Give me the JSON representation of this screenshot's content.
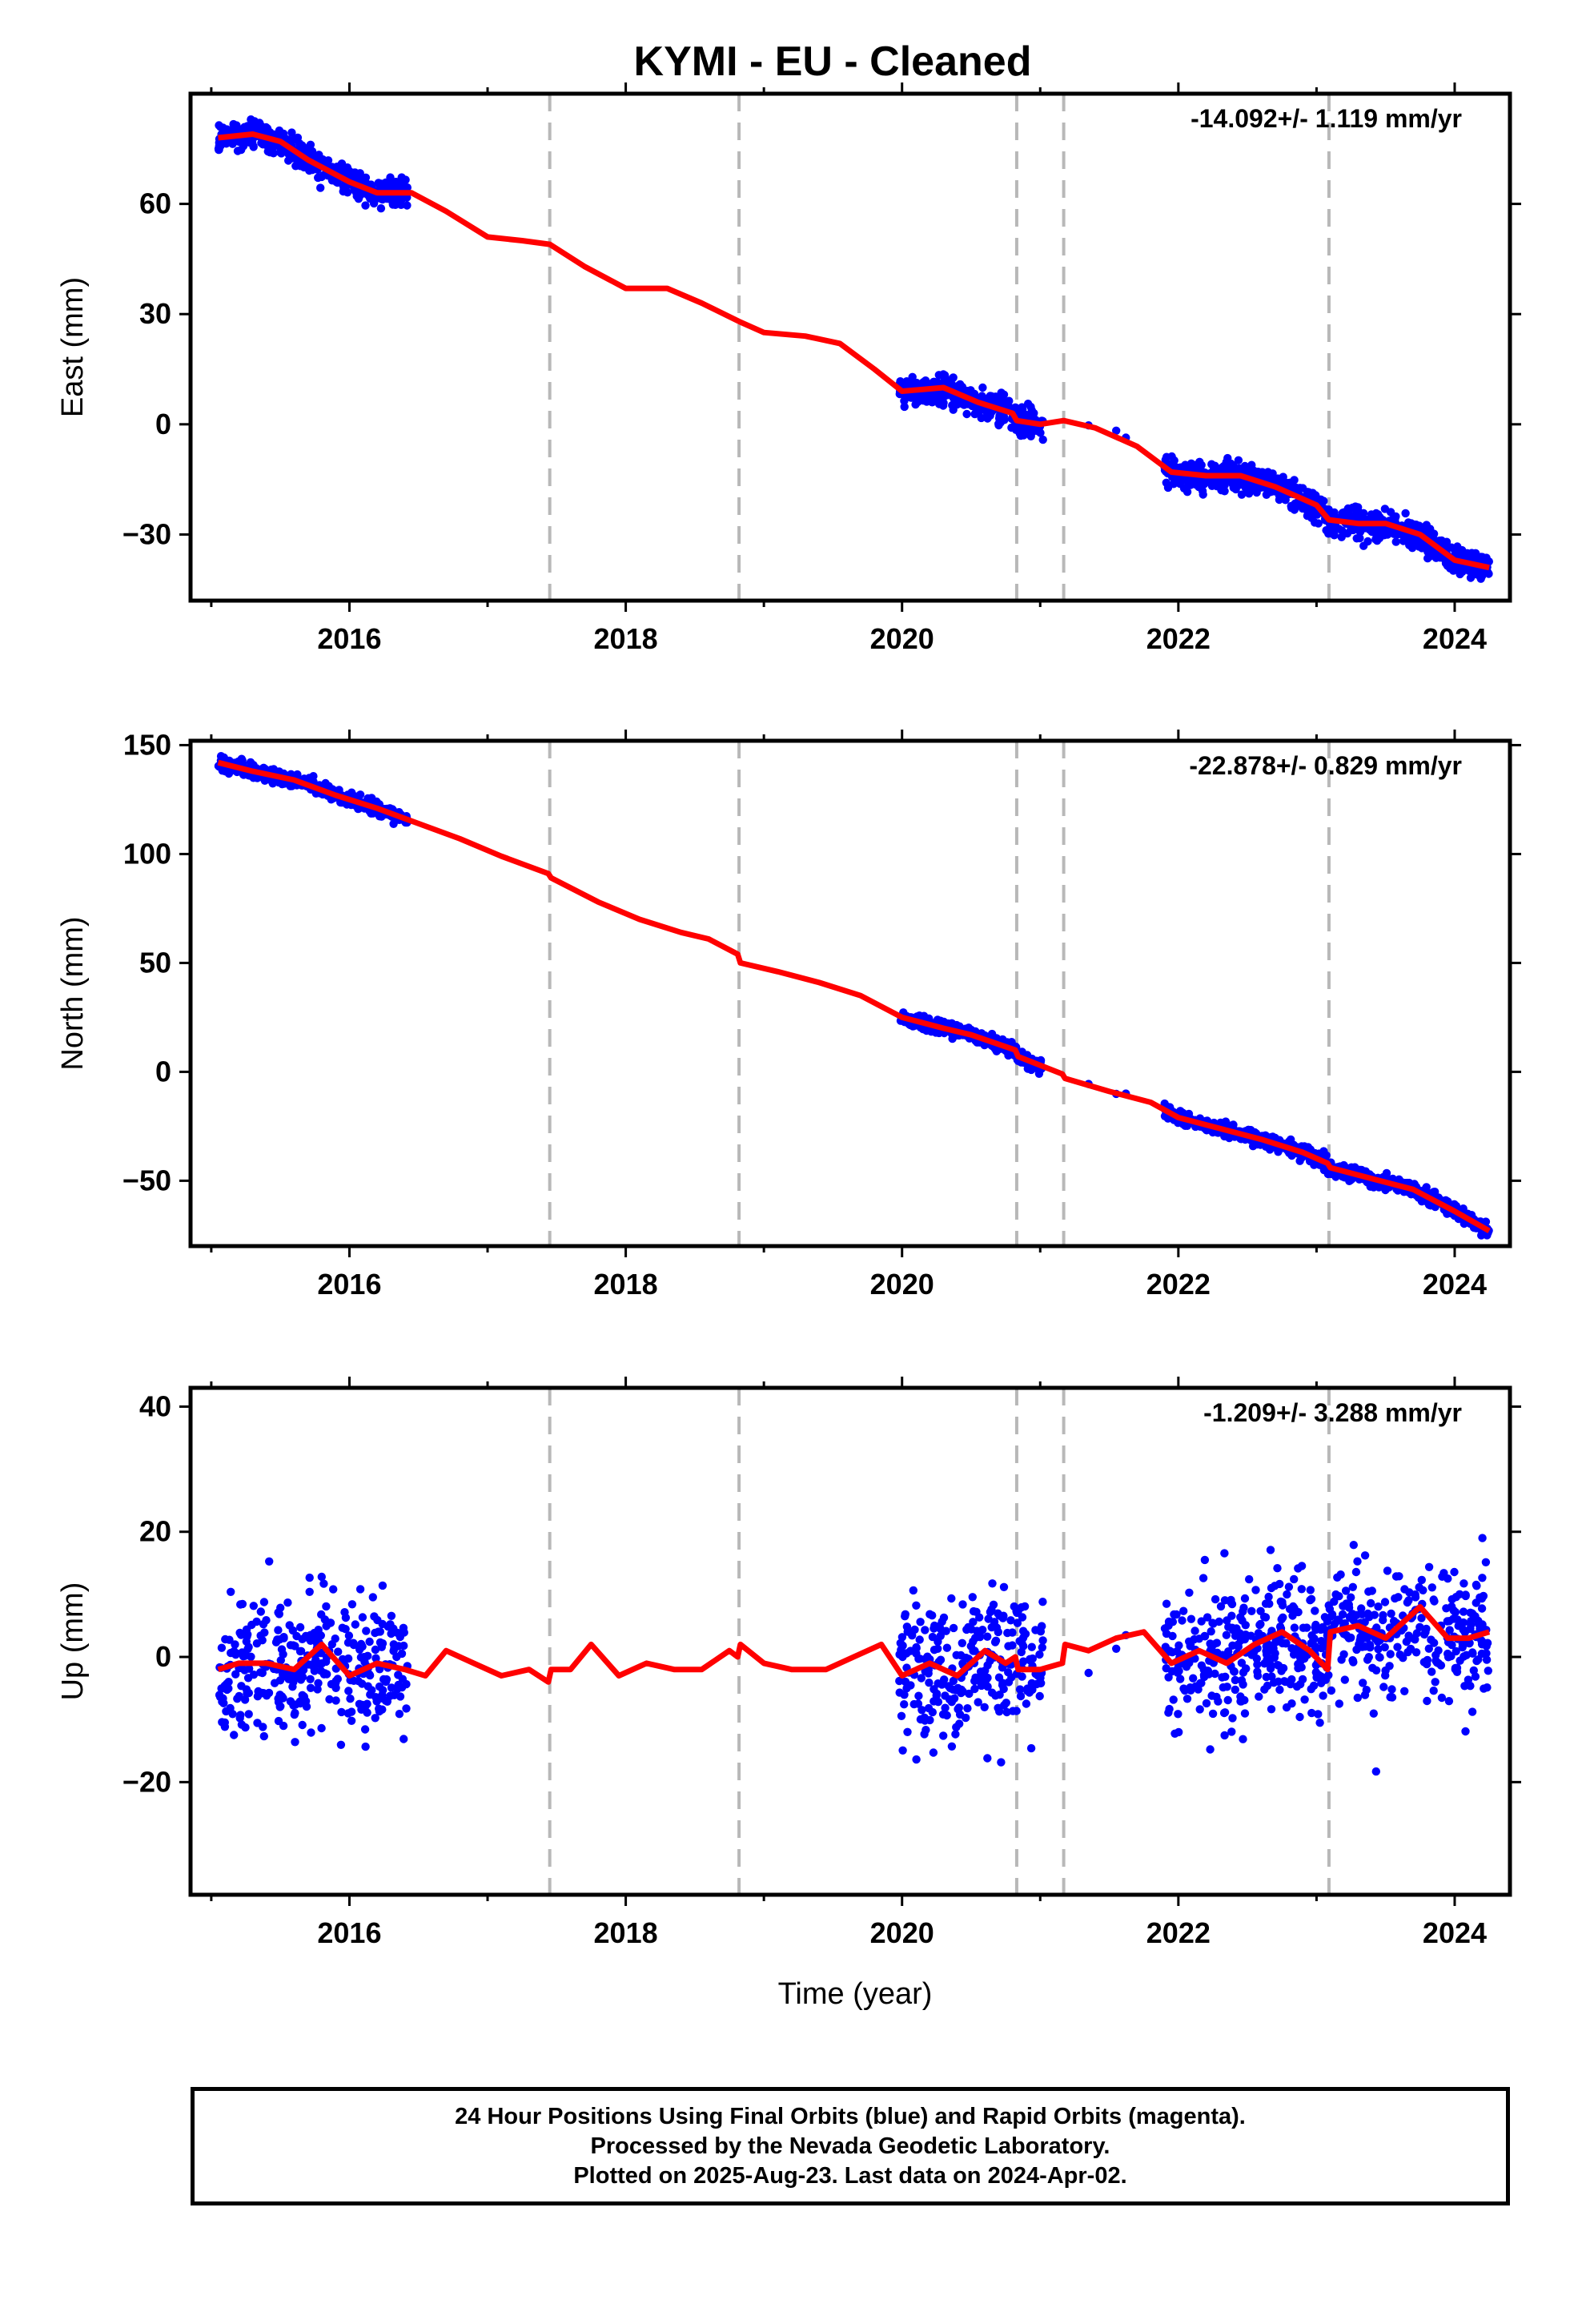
{
  "title": "KYMI  - EU - Cleaned",
  "xlabel": "Time (year)",
  "footer": {
    "line1": "24 Hour Positions Using Final Orbits (blue) and Rapid Orbits (magenta).",
    "line2": "Processed by the Nevada Geodetic Laboratory.",
    "line3": "Plotted on 2025-Aug-23. Last data on 2024-Apr-02."
  },
  "colors": {
    "points": "#0000ff",
    "model": "#ff0000",
    "breaks": "#b8b8b8",
    "axes": "#000000"
  },
  "chart_data": [
    {
      "type": "scatter",
      "panel": "east",
      "ylabel": "East (mm)",
      "rate_label": "-14.092+/- 1.119 mm/yr",
      "xlim": [
        2014.85,
        2024.4
      ],
      "ylim": [
        -48,
        90
      ],
      "yticks": [
        -30,
        0,
        30,
        60
      ],
      "xticks": [
        2016,
        2018,
        2020,
        2022,
        2024
      ],
      "grid": false,
      "break_epochs": [
        2017.45,
        2018.82,
        2020.83,
        2021.17,
        2023.09
      ],
      "data_segments": [
        [
          2015.05,
          2016.42
        ],
        [
          2019.98,
          2021.02
        ],
        [
          2021.9,
          2024.25
        ]
      ],
      "model": {
        "x": [
          2015.05,
          2015.3,
          2015.5,
          2015.7,
          2016.0,
          2016.2,
          2016.45,
          2016.7,
          2017.0,
          2017.25,
          2017.45,
          2017.7,
          2018.0,
          2018.3,
          2018.55,
          2018.82,
          2019.0,
          2019.3,
          2019.55,
          2019.8,
          2020.0,
          2020.3,
          2020.55,
          2020.8,
          2020.83,
          2021.0,
          2021.17,
          2021.4,
          2021.7,
          2021.95,
          2022.2,
          2022.45,
          2022.7,
          2023.0,
          2023.09,
          2023.3,
          2023.5,
          2023.75,
          2024.0,
          2024.25
        ],
        "y": [
          78,
          79,
          77,
          72,
          66,
          63,
          63,
          58,
          51,
          50,
          49,
          43,
          37,
          37,
          33,
          28,
          25,
          24,
          22,
          15,
          9,
          10,
          6,
          3,
          1,
          0,
          1,
          -1,
          -6,
          -13,
          -14,
          -14,
          -17,
          -22,
          -26,
          -27,
          -27,
          -30,
          -37,
          -39
        ]
      },
      "point_scatter_mm": 2.7
    },
    {
      "type": "scatter",
      "panel": "north",
      "ylabel": "North (mm)",
      "rate_label": "-22.878+/- 0.829 mm/yr",
      "xlim": [
        2014.85,
        2024.4
      ],
      "ylim": [
        -80,
        152
      ],
      "yticks": [
        -50,
        0,
        50,
        100,
        150
      ],
      "xticks": [
        2016,
        2018,
        2020,
        2022,
        2024
      ],
      "grid": false,
      "break_epochs": [
        2017.45,
        2018.82,
        2020.83,
        2021.17,
        2023.09
      ],
      "data_segments": [
        [
          2015.05,
          2016.42
        ],
        [
          2019.98,
          2021.02
        ],
        [
          2021.9,
          2024.25
        ]
      ],
      "model": {
        "x": [
          2015.05,
          2015.3,
          2015.6,
          2015.9,
          2016.2,
          2016.5,
          2016.8,
          2017.1,
          2017.44,
          2017.46,
          2017.8,
          2018.1,
          2018.4,
          2018.6,
          2018.81,
          2018.83,
          2019.1,
          2019.4,
          2019.7,
          2020.0,
          2020.3,
          2020.5,
          2020.82,
          2020.84,
          2021.16,
          2021.18,
          2021.5,
          2021.8,
          2022.0,
          2022.3,
          2022.6,
          2022.9,
          2023.08,
          2023.1,
          2023.4,
          2023.7,
          2024.0,
          2024.25
        ],
        "y": [
          142,
          138,
          134,
          127,
          121,
          114,
          107,
          99,
          91,
          89,
          78,
          70,
          64,
          61,
          54,
          50,
          46,
          41,
          35,
          25,
          20,
          17,
          10,
          7,
          -1,
          -3,
          -9,
          -14,
          -21,
          -26,
          -31,
          -37,
          -42,
          -44,
          -49,
          -54,
          -64,
          -73
        ]
      },
      "point_scatter_mm": 2.2
    },
    {
      "type": "scatter",
      "panel": "up",
      "ylabel": "Up (mm)",
      "rate_label": "-1.209+/- 3.288 mm/yr",
      "xlim": [
        2014.85,
        2024.4
      ],
      "ylim": [
        -38,
        43
      ],
      "yticks": [
        -20,
        0,
        20,
        40
      ],
      "xticks": [
        2016,
        2018,
        2020,
        2022,
        2024
      ],
      "grid": false,
      "break_epochs": [
        2017.45,
        2018.82,
        2020.83,
        2021.17,
        2023.09
      ],
      "data_segments": [
        [
          2015.05,
          2016.42
        ],
        [
          2019.98,
          2021.02
        ],
        [
          2021.9,
          2024.25
        ]
      ],
      "model": {
        "x": [
          2015.05,
          2015.2,
          2015.4,
          2015.6,
          2015.8,
          2016.0,
          2016.2,
          2016.4,
          2016.55,
          2016.7,
          2016.9,
          2017.1,
          2017.3,
          2017.44,
          2017.46,
          2017.6,
          2017.75,
          2017.95,
          2018.15,
          2018.35,
          2018.55,
          2018.75,
          2018.81,
          2018.83,
          2019.0,
          2019.2,
          2019.45,
          2019.65,
          2019.85,
          2020.0,
          2020.2,
          2020.4,
          2020.6,
          2020.75,
          2020.82,
          2020.84,
          2021.0,
          2021.16,
          2021.18,
          2021.35,
          2021.55,
          2021.75,
          2021.95,
          2022.15,
          2022.35,
          2022.55,
          2022.75,
          2022.95,
          2023.08,
          2023.1,
          2023.3,
          2023.5,
          2023.75,
          2023.95,
          2024.1,
          2024.25
        ],
        "y": [
          -2,
          -1,
          -1,
          -2,
          2,
          -3,
          -1,
          -2,
          -3,
          1,
          -1,
          -3,
          -2,
          -4,
          -2,
          -2,
          2,
          -3,
          -1,
          -2,
          -2,
          1,
          0,
          2,
          -1,
          -2,
          -2,
          0,
          2,
          -3,
          -1,
          -3,
          1,
          -1,
          0,
          -2,
          -2,
          -1,
          2,
          1,
          3,
          4,
          -1,
          1,
          -1,
          2,
          4,
          1,
          -2,
          4,
          5,
          3,
          8,
          3,
          3,
          4
        ]
      },
      "point_scatter_mm": 7.5
    }
  ]
}
